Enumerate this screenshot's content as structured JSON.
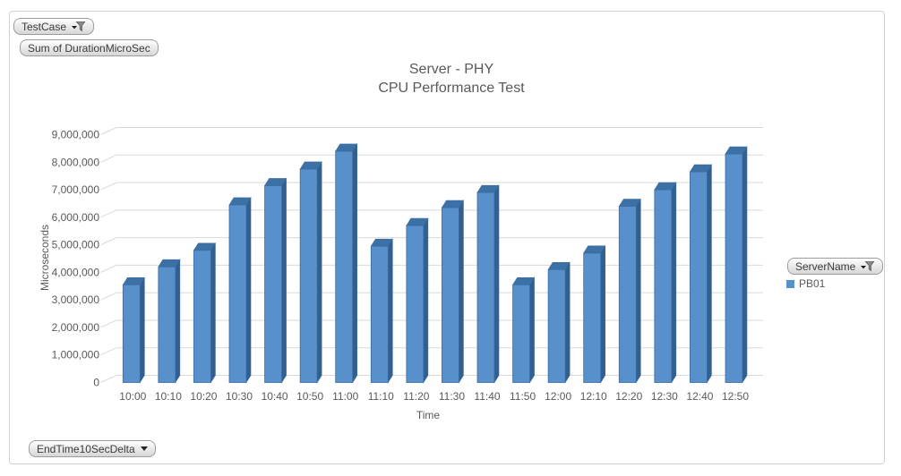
{
  "title": {
    "line1": "Server - PHY",
    "line2": "CPU Performance Test"
  },
  "pivot_fields": {
    "report_filter": {
      "label": "TestCase",
      "icon": "filter-dropdown"
    },
    "values_field": {
      "label": "Sum of DurationMicroSec"
    },
    "legend_field": {
      "label": "ServerName",
      "icon": "filter-dropdown"
    },
    "axis_field": {
      "label": "EndTime10SecDelta",
      "icon": "dropdown"
    }
  },
  "legend": {
    "position": "right",
    "entries": [
      {
        "label": "PB01",
        "color": "#5890CB"
      }
    ]
  },
  "chart_data": {
    "type": "bar",
    "style": "3d-column",
    "title": "Server - PHY CPU Performance Test",
    "xlabel": "Time",
    "ylabel": "Microseconds",
    "categories": [
      "10:00",
      "10:10",
      "10:20",
      "10:30",
      "10:40",
      "10:50",
      "11:00",
      "11:10",
      "11:20",
      "11:30",
      "11:40",
      "11:50",
      "12:00",
      "12:10",
      "12:20",
      "12:30",
      "12:40",
      "12:50"
    ],
    "series": [
      {
        "name": "PB01",
        "values": [
          3550000,
          4200000,
          4800000,
          6450000,
          7150000,
          7750000,
          8400000,
          4950000,
          5700000,
          6350000,
          6900000,
          3550000,
          4100000,
          4700000,
          6400000,
          7000000,
          7650000,
          8300000
        ]
      }
    ],
    "ylim": [
      0,
      9000000
    ],
    "ytick_interval": 1000000,
    "ytick_labels": [
      "0",
      "1,000,000",
      "2,000,000",
      "3,000,000",
      "4,000,000",
      "5,000,000",
      "6,000,000",
      "7,000,000",
      "8,000,000",
      "9,000,000"
    ],
    "grid": true,
    "legend_position": "right",
    "colors": {
      "bar_front": "#5890CB",
      "bar_top": "#3C71A6",
      "bar_side": "#335F8F",
      "bar_outline": "#3A6BA0",
      "gridline": "#D9D9D9",
      "text": "#595959"
    }
  }
}
